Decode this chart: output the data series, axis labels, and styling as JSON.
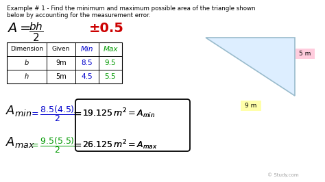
{
  "bg_color": "#ffffff",
  "example_text_line1": "Example # 1 - Find the minimum and maximum possible area of the triangle shown",
  "example_text_line2": "below by accounting for the measurement error.",
  "plus_minus_text": "±0.5",
  "table_headers": [
    "Dimension",
    "Given",
    "Min",
    "Max"
  ],
  "table_rows": [
    [
      "b",
      "9m",
      "8.5",
      "9.5"
    ],
    [
      "h",
      "5m",
      "4.5",
      "5.5"
    ]
  ],
  "triangle_color": "#ddeeff",
  "triangle_border": "#99bbcc",
  "label_5m_bg": "#ffccdd",
  "label_9m_bg": "#ffffaa",
  "watermark": "© Study.com",
  "red_color": "#cc0000",
  "blue_color": "#0000cc",
  "green_color": "#009900",
  "black_color": "#000000",
  "gray_color": "#888888"
}
